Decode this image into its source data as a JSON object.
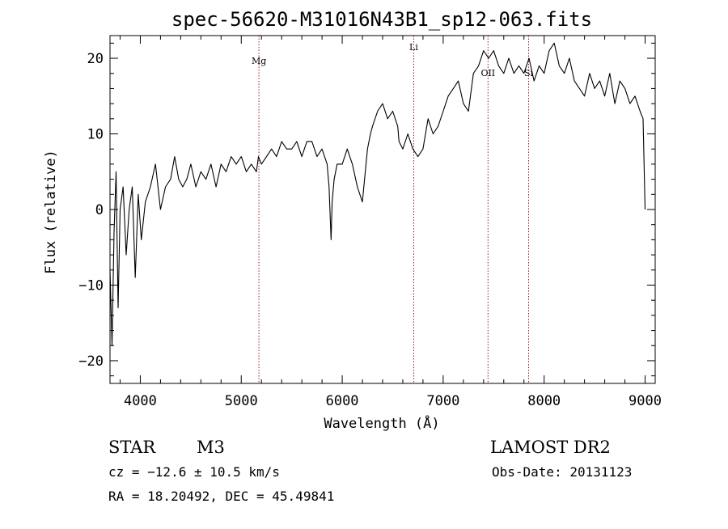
{
  "chart_data": {
    "type": "line",
    "title": "spec-56620-M31016N43B1_sp12-063.fits",
    "xlabel": "Wavelength (Å)",
    "ylabel": "Flux (relative)",
    "xlim": [
      3700,
      9100
    ],
    "ylim": [
      -23,
      23
    ],
    "x_ticks": [
      4000,
      5000,
      6000,
      7000,
      8000,
      9000
    ],
    "y_ticks": [
      -20,
      -10,
      0,
      10,
      20
    ],
    "grid": false,
    "series": [
      {
        "color": "#000000",
        "x": [
          3700,
          3720,
          3740,
          3760,
          3780,
          3800,
          3830,
          3860,
          3890,
          3920,
          3950,
          3980,
          4010,
          4050,
          4100,
          4150,
          4200,
          4250,
          4300,
          4340,
          4380,
          4420,
          4460,
          4500,
          4550,
          4600,
          4650,
          4700,
          4750,
          4800,
          4850,
          4900,
          4950,
          5000,
          5050,
          5100,
          5150,
          5170,
          5200,
          5250,
          5300,
          5350,
          5400,
          5450,
          5500,
          5550,
          5600,
          5650,
          5700,
          5750,
          5800,
          5850,
          5870,
          5890,
          5900,
          5920,
          5950,
          6000,
          6050,
          6100,
          6150,
          6200,
          6250,
          6280,
          6300,
          6350,
          6400,
          6450,
          6500,
          6550,
          6563,
          6600,
          6650,
          6700,
          6750,
          6800,
          6850,
          6900,
          6950,
          7000,
          7050,
          7100,
          7150,
          7200,
          7250,
          7300,
          7350,
          7400,
          7450,
          7500,
          7550,
          7600,
          7650,
          7700,
          7750,
          7800,
          7850,
          7900,
          7950,
          8000,
          8050,
          8100,
          8150,
          8200,
          8250,
          8300,
          8350,
          8400,
          8450,
          8500,
          8550,
          8600,
          8650,
          8700,
          8750,
          8800,
          8850,
          8900,
          8950,
          8980,
          9000
        ],
        "y": [
          -8,
          -18,
          -3,
          5,
          -13,
          0,
          3,
          -6,
          0,
          3,
          -9,
          2,
          -4,
          1,
          3,
          6,
          0,
          3,
          4,
          7,
          4,
          3,
          4,
          6,
          3,
          5,
          4,
          6,
          3,
          6,
          5,
          7,
          6,
          7,
          5,
          6,
          5,
          7,
          6,
          7,
          8,
          7,
          9,
          8,
          8,
          9,
          7,
          9,
          9,
          7,
          8,
          6,
          3,
          -4,
          1,
          4,
          6,
          6,
          8,
          6,
          3,
          1,
          8,
          10,
          11,
          13,
          14,
          12,
          13,
          11,
          9,
          8,
          10,
          8,
          7,
          8,
          12,
          10,
          11,
          13,
          15,
          16,
          17,
          14,
          13,
          18,
          19,
          21,
          20,
          21,
          19,
          18,
          20,
          18,
          19,
          18,
          20,
          17,
          19,
          18,
          21,
          22,
          19,
          18,
          20,
          17,
          16,
          15,
          18,
          16,
          17,
          15,
          18,
          14,
          17,
          16,
          14,
          15,
          13,
          12,
          0
        ]
      }
    ],
    "line_markers": [
      {
        "label": "Mg",
        "x": 5175
      },
      {
        "label": "Li",
        "x": 6708
      },
      {
        "label": "OII",
        "x": 7444
      },
      {
        "label": "Si",
        "x": 7846
      }
    ]
  },
  "footer": {
    "star_type": "STAR",
    "subclass": "M3",
    "survey": "LAMOST DR2",
    "cz_line": "cz = −12.6 ± 10.5 km/s",
    "obs_date": "Obs-Date: 20131123",
    "radec_line": "RA =  18.20492, DEC =  45.49841"
  }
}
